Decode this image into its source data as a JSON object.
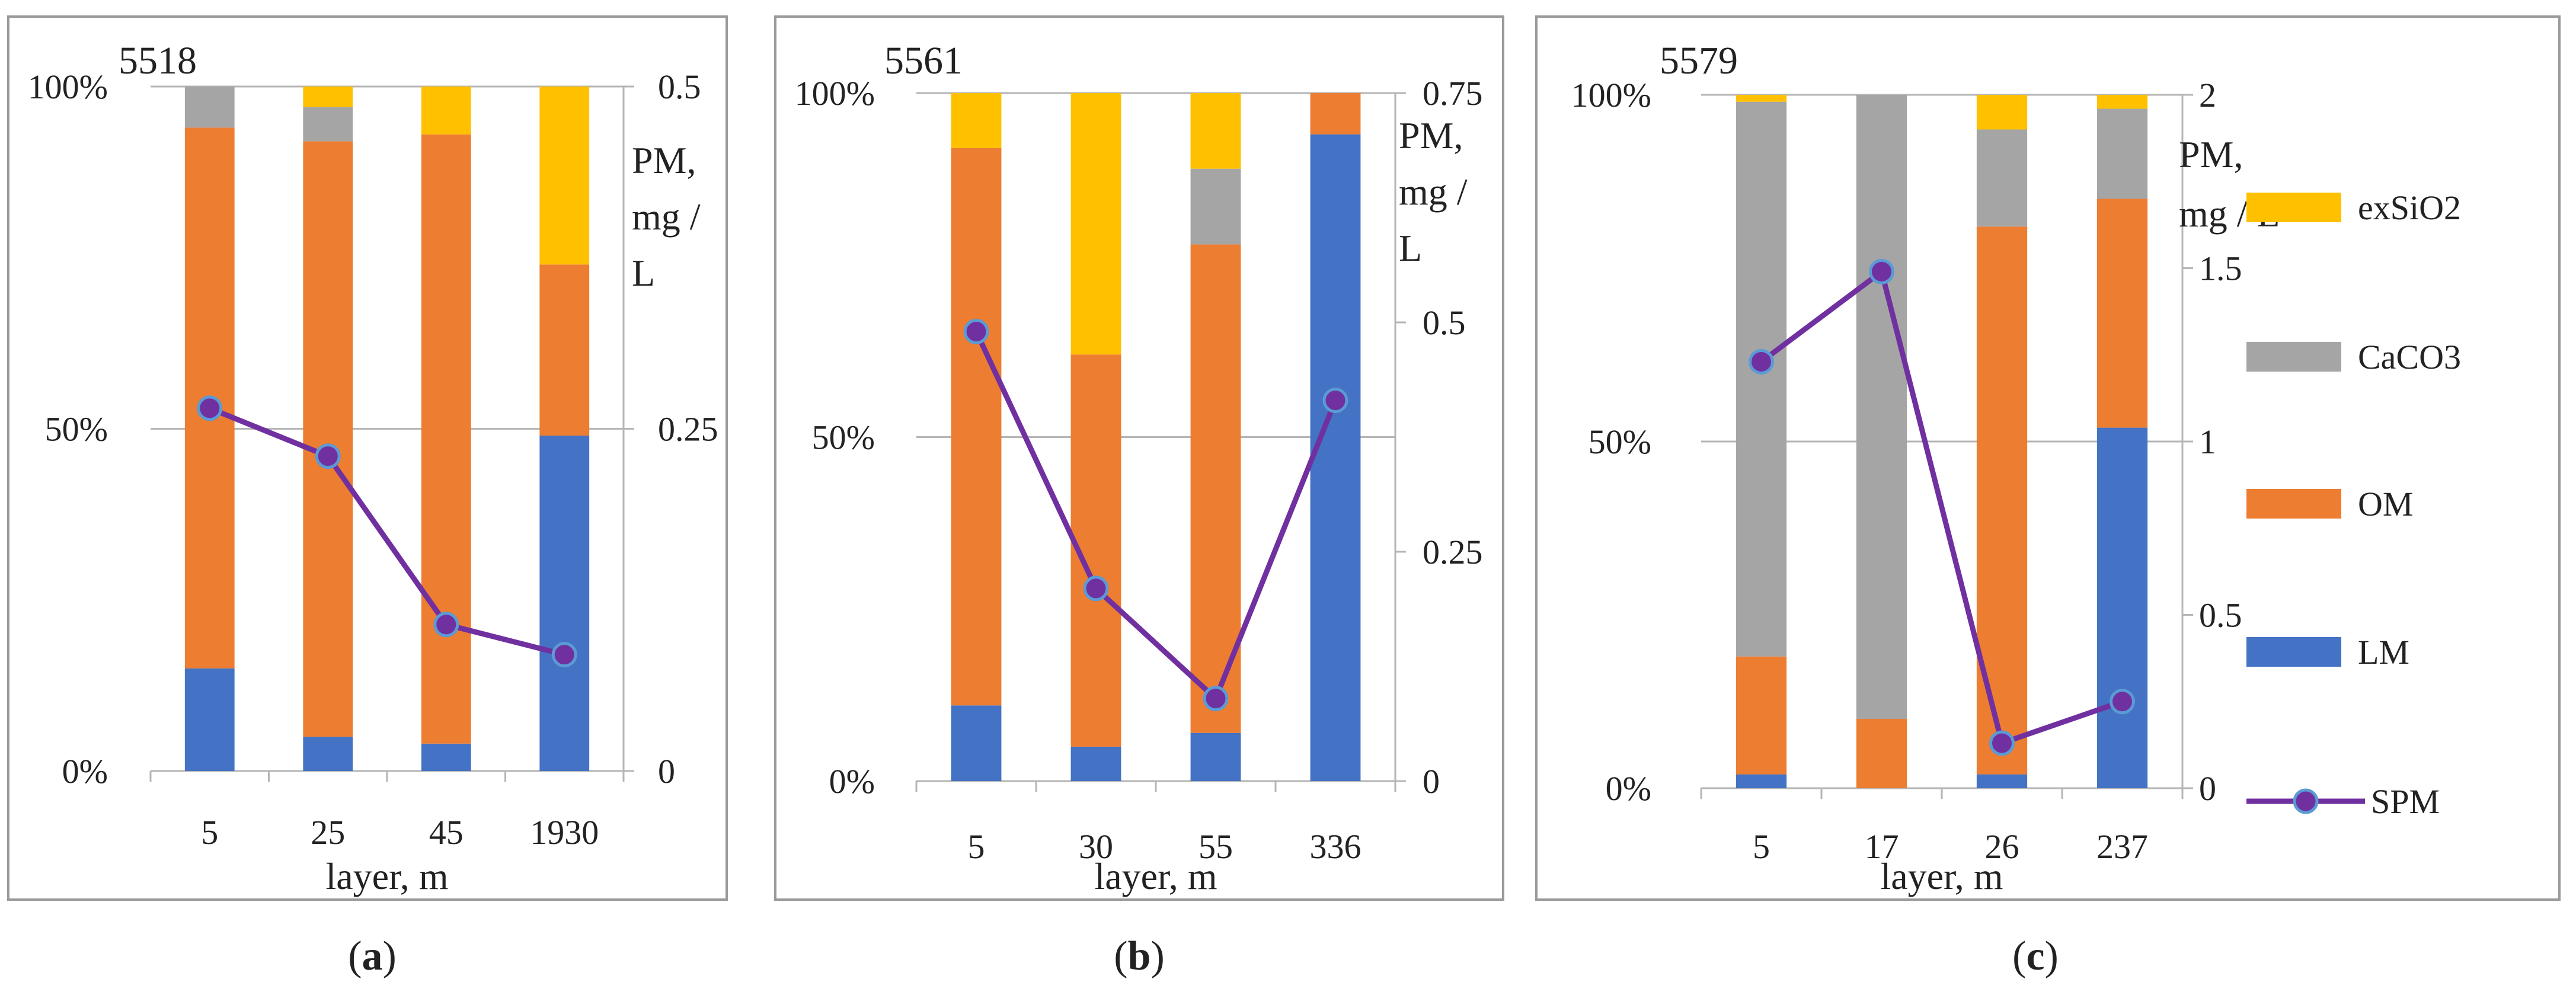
{
  "figure": {
    "panels": [
      "a",
      "b",
      "c"
    ]
  },
  "colors": {
    "LM": "#4472C4",
    "OM": "#ED7D31",
    "CaCO3": "#A5A5A5",
    "exSiO2": "#FFC000",
    "SPM": "#7030A0",
    "SPM_marker_edge": "#5B9BD5"
  },
  "legend": {
    "items": [
      {
        "key": "exSiO2",
        "label": "exSiO2"
      },
      {
        "key": "CaCO3",
        "label": "CaCO3"
      },
      {
        "key": "OM",
        "label": "OM"
      },
      {
        "key": "LM",
        "label": "LM"
      },
      {
        "key": "SPM",
        "label": "SPM"
      }
    ]
  },
  "chart_data": [
    {
      "type": "bar",
      "stacked": true,
      "panel": "a",
      "caption_letter": "a",
      "title": "5518",
      "xlabel": "layer, m",
      "ylabel_right": [
        "PM,",
        "mg /",
        "L"
      ],
      "categories": [
        "5",
        "25",
        "45",
        "1930"
      ],
      "left_axis": {
        "ticks": [
          "0%",
          "50%",
          "100%"
        ],
        "range": [
          0,
          100
        ]
      },
      "right_axis": {
        "ticks": [
          "0",
          "0.25",
          "0.5"
        ],
        "range": [
          0,
          0.5
        ]
      },
      "series": [
        {
          "name": "LM",
          "values": [
            15,
            5,
            4,
            49
          ]
        },
        {
          "name": "OM",
          "values": [
            79,
            87,
            89,
            25
          ]
        },
        {
          "name": "CaCO3",
          "values": [
            6,
            5,
            0,
            0
          ]
        },
        {
          "name": "exSiO2",
          "values": [
            0,
            3,
            7,
            26
          ]
        }
      ],
      "line": {
        "name": "SPM",
        "values": [
          0.265,
          0.23,
          0.107,
          0.085
        ]
      }
    },
    {
      "type": "bar",
      "stacked": true,
      "panel": "b",
      "caption_letter": "b",
      "title": "5561",
      "xlabel": "layer, m",
      "ylabel_right": [
        "PM,",
        "mg /",
        "L"
      ],
      "categories": [
        "5",
        "30",
        "55",
        "336"
      ],
      "left_axis": {
        "ticks": [
          "0%",
          "50%",
          "100%"
        ],
        "range": [
          0,
          100
        ]
      },
      "right_axis": {
        "ticks": [
          "0",
          "0.25",
          "0.5",
          "0.75"
        ],
        "range": [
          0,
          0.75
        ]
      },
      "series": [
        {
          "name": "LM",
          "values": [
            11,
            5,
            7,
            94
          ]
        },
        {
          "name": "OM",
          "values": [
            81,
            57,
            71,
            6
          ]
        },
        {
          "name": "CaCO3",
          "values": [
            0,
            0,
            11,
            0
          ]
        },
        {
          "name": "exSiO2",
          "values": [
            8,
            38,
            11,
            0
          ]
        }
      ],
      "line": {
        "name": "SPM",
        "values": [
          0.49,
          0.21,
          0.09,
          0.415
        ]
      }
    },
    {
      "type": "bar",
      "stacked": true,
      "panel": "c",
      "caption_letter": "c",
      "title": "5579",
      "xlabel": "layer, m",
      "ylabel_right": [
        "PM,",
        "mg / L"
      ],
      "categories": [
        "5",
        "17",
        "26",
        "237"
      ],
      "left_axis": {
        "ticks": [
          "0%",
          "50%",
          "100%"
        ],
        "range": [
          0,
          100
        ]
      },
      "right_axis": {
        "ticks": [
          "0",
          "0.5",
          "1",
          "1.5",
          "2"
        ],
        "range": [
          0,
          2
        ]
      },
      "series": [
        {
          "name": "LM",
          "values": [
            2,
            0,
            2,
            52
          ]
        },
        {
          "name": "OM",
          "values": [
            17,
            10,
            79,
            33
          ]
        },
        {
          "name": "CaCO3",
          "values": [
            80,
            90,
            14,
            13
          ]
        },
        {
          "name": "exSiO2",
          "values": [
            1,
            0,
            5,
            2
          ]
        }
      ],
      "line": {
        "name": "SPM",
        "values": [
          1.23,
          1.49,
          0.13,
          0.25
        ]
      }
    }
  ]
}
